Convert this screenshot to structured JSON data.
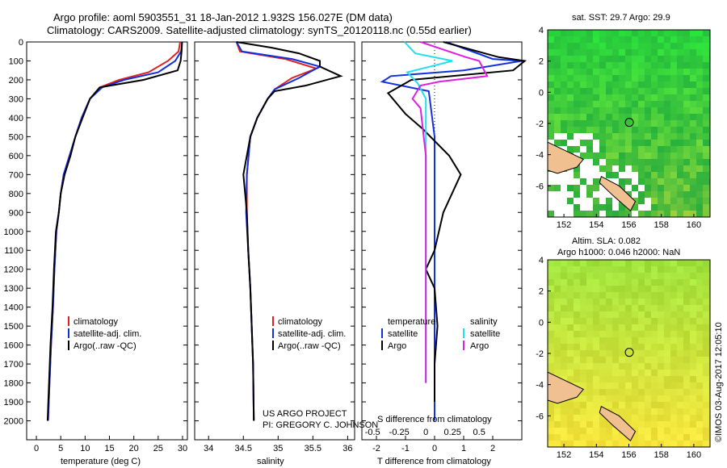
{
  "header": {
    "title_line1": "Argo profile: aoml 5903551_31 18-Jan-2012 1.932S 156.027E (DM data)",
    "title_line2": "Climatology: CARS2009. Satellite-adjusted climatology: synTS_20120118.nc (0.55d earlier)"
  },
  "colors": {
    "climatology": "#e02020",
    "satellite": "#1030e0",
    "argo": "#000000",
    "sat_salinity": "#20e0f0",
    "argo_salinity": "#e020e0",
    "land": "#f0c090"
  },
  "chart_data": [
    {
      "type": "line",
      "name": "temperature-panel",
      "xlabel": "temperature (deg C)",
      "ylabel": "",
      "xlim": [
        -2,
        31
      ],
      "ylim": [
        2100,
        0
      ],
      "xticks": [
        "0",
        "5",
        "10",
        "15",
        "20",
        "25",
        "30"
      ],
      "yticks": [
        "0",
        "100",
        "200",
        "300",
        "400",
        "500",
        "600",
        "700",
        "800",
        "900",
        "1000",
        "1100",
        "1200",
        "1300",
        "1400",
        "1500",
        "1600",
        "1700",
        "1800",
        "1900",
        "2000"
      ],
      "legend": [
        "climatology",
        "satellite-adj. clim.",
        "Argo(..raw -QC)"
      ],
      "series": [
        {
          "name": "climatology",
          "color": "#e02020",
          "points": [
            [
              29.5,
              0
            ],
            [
              29.2,
              50
            ],
            [
              27,
              100
            ],
            [
              23,
              160
            ],
            [
              17,
              200
            ],
            [
              13,
              240
            ],
            [
              11,
              300
            ],
            [
              9.3,
              400
            ],
            [
              8,
              500
            ],
            [
              6.8,
              600
            ],
            [
              5.6,
              700
            ],
            [
              5,
              800
            ],
            [
              4.6,
              900
            ],
            [
              4.1,
              1000
            ],
            [
              3.7,
              1200
            ],
            [
              3.4,
              1400
            ],
            [
              3,
              1600
            ],
            [
              2.7,
              1800
            ],
            [
              2.4,
              2000
            ]
          ]
        },
        {
          "name": "satellite-adj. clim.",
          "color": "#1030e0",
          "points": [
            [
              29.9,
              0
            ],
            [
              29.7,
              50
            ],
            [
              28.5,
              100
            ],
            [
              25,
              160
            ],
            [
              18,
              200
            ],
            [
              13.5,
              240
            ],
            [
              11,
              300
            ],
            [
              9.3,
              400
            ],
            [
              8,
              500
            ],
            [
              6.8,
              600
            ],
            [
              5.6,
              700
            ],
            [
              5,
              800
            ],
            [
              4.6,
              900
            ],
            [
              4.1,
              1000
            ],
            [
              3.7,
              1200
            ],
            [
              3.4,
              1400
            ],
            [
              3,
              1600
            ],
            [
              2.7,
              1800
            ],
            [
              2.4,
              2000
            ]
          ]
        },
        {
          "name": "Argo(..raw -QC)",
          "color": "#000000",
          "points": [
            [
              29.9,
              0
            ],
            [
              29.8,
              50
            ],
            [
              29.6,
              100
            ],
            [
              29,
              150
            ],
            [
              22,
              200
            ],
            [
              13,
              240
            ],
            [
              11,
              300
            ],
            [
              9.5,
              400
            ],
            [
              8,
              500
            ],
            [
              7,
              600
            ],
            [
              5.8,
              700
            ],
            [
              5,
              800
            ],
            [
              4.6,
              900
            ],
            [
              4,
              1000
            ],
            [
              3.6,
              1200
            ],
            [
              3.3,
              1400
            ],
            [
              2.9,
              1600
            ],
            [
              2.6,
              1800
            ],
            [
              2.3,
              2000
            ]
          ]
        }
      ]
    },
    {
      "type": "line",
      "name": "salinity-panel",
      "xlabel": "salinity",
      "xlim": [
        33.8,
        36.1
      ],
      "ylim": [
        2100,
        0
      ],
      "xticks": [
        "34",
        "34.5",
        "35",
        "35.5",
        "36"
      ],
      "legend": [
        "climatology",
        "satellite-adj. clim.",
        "Argo(..raw -QC)"
      ],
      "annotation": [
        "US ARGO PROJECT",
        "PI: GREGORY C. JOHNSON"
      ],
      "series": [
        {
          "name": "climatology",
          "color": "#e02020",
          "points": [
            [
              34.4,
              0
            ],
            [
              34.45,
              50
            ],
            [
              35.1,
              90
            ],
            [
              35.55,
              140
            ],
            [
              35.2,
              190
            ],
            [
              34.95,
              250
            ],
            [
              34.85,
              300
            ],
            [
              34.7,
              400
            ],
            [
              34.6,
              500
            ],
            [
              34.55,
              700
            ],
            [
              34.55,
              900
            ],
            [
              34.57,
              1100
            ],
            [
              34.6,
              1300
            ],
            [
              34.62,
              1500
            ],
            [
              34.64,
              1700
            ],
            [
              34.65,
              2000
            ]
          ]
        },
        {
          "name": "satellite-adj. clim.",
          "color": "#1030e0",
          "points": [
            [
              34.4,
              0
            ],
            [
              34.48,
              50
            ],
            [
              35.2,
              90
            ],
            [
              35.6,
              130
            ],
            [
              35.3,
              190
            ],
            [
              34.95,
              250
            ],
            [
              34.85,
              300
            ],
            [
              34.7,
              400
            ],
            [
              34.6,
              500
            ],
            [
              34.55,
              700
            ],
            [
              34.54,
              900
            ],
            [
              34.57,
              1100
            ],
            [
              34.6,
              1300
            ],
            [
              34.62,
              1500
            ],
            [
              34.64,
              1700
            ],
            [
              34.65,
              2000
            ]
          ]
        },
        {
          "name": "Argo(..raw -QC)",
          "color": "#000000",
          "points": [
            [
              34.4,
              0
            ],
            [
              34.9,
              30
            ],
            [
              35.3,
              60
            ],
            [
              35.6,
              100
            ],
            [
              35.6,
              130
            ],
            [
              35.9,
              180
            ],
            [
              35.4,
              230
            ],
            [
              34.95,
              260
            ],
            [
              34.85,
              300
            ],
            [
              34.7,
              400
            ],
            [
              34.6,
              500
            ],
            [
              34.5,
              700
            ],
            [
              34.55,
              900
            ],
            [
              34.57,
              1100
            ],
            [
              34.6,
              1300
            ],
            [
              34.62,
              1500
            ],
            [
              34.64,
              1700
            ],
            [
              34.65,
              2000
            ]
          ]
        }
      ]
    },
    {
      "type": "line",
      "name": "difference-panel",
      "xlabel": "T difference from climatology",
      "xlabel2": "S difference from climatology",
      "xlim": [
        -2.5,
        3.0
      ],
      "ylim": [
        2100,
        0
      ],
      "xticks": [
        "-2",
        "-1",
        "0",
        "1",
        "2"
      ],
      "xticks2": [
        "-0.5",
        "-0.25",
        "0",
        "0.25",
        "0.5"
      ],
      "legend_temperature": {
        "title": "temperature",
        "items": [
          "satellite",
          "Argo"
        ]
      },
      "legend_salinity": {
        "title": "salinity",
        "items": [
          "satellite",
          "Argo"
        ]
      },
      "series": [
        {
          "name": "temperature satellite",
          "color": "#1030e0",
          "points": [
            [
              0.4,
              0
            ],
            [
              2,
              90
            ],
            [
              3,
              100
            ],
            [
              1,
              150
            ],
            [
              -1.5,
              180
            ],
            [
              -1.8,
              210
            ],
            [
              -0.2,
              260
            ],
            [
              0,
              500
            ],
            [
              0,
              1000
            ],
            [
              0,
              2000
            ]
          ]
        },
        {
          "name": "temperature Argo",
          "color": "#000000",
          "points": [
            [
              0.3,
              0
            ],
            [
              2.2,
              80
            ],
            [
              3.1,
              100
            ],
            [
              2.7,
              150
            ],
            [
              -0.8,
              200
            ],
            [
              -1.6,
              270
            ],
            [
              -1,
              380
            ],
            [
              -0.4,
              460
            ],
            [
              0.5,
              600
            ],
            [
              0.9,
              700
            ],
            [
              0.3,
              900
            ],
            [
              0,
              1100
            ],
            [
              -0.3,
              1200
            ],
            [
              0,
              1300
            ],
            [
              0.1,
              1500
            ],
            [
              0,
              1700
            ],
            [
              0,
              1900
            ]
          ]
        },
        {
          "name": "salinity satellite",
          "color": "#20e0f0",
          "points": [
            [
              -0.8,
              0
            ],
            [
              -0.4,
              60
            ],
            [
              1,
              100
            ],
            [
              -0.7,
              160
            ],
            [
              -0.3,
              220
            ],
            [
              0,
              300
            ],
            [
              0,
              900
            ],
            [
              0,
              1800
            ]
          ]
        },
        {
          "name": "salinity Argo",
          "color": "#e020e0",
          "points": [
            [
              -0.2,
              0
            ],
            [
              1.5,
              80
            ],
            [
              2,
              100
            ],
            [
              2.3,
              180
            ],
            [
              0.5,
              210
            ],
            [
              -0.2,
              230
            ],
            [
              -0.5,
              300
            ],
            [
              -0.2,
              350
            ],
            [
              0,
              600
            ],
            [
              0,
              1000
            ],
            [
              0,
              1800
            ]
          ]
        }
      ]
    },
    {
      "type": "heatmap",
      "name": "sst-map",
      "title": "sat. SST: 29.7   Argo: 29.9",
      "xticks": [
        "152",
        "154",
        "156",
        "158",
        "160"
      ],
      "yticks": [
        "4",
        "2",
        "0",
        "-2",
        "-4",
        "-6"
      ],
      "xlim": [
        151,
        161
      ],
      "ylim": [
        -8,
        4
      ],
      "float_position": [
        156.027,
        -1.932
      ]
    },
    {
      "type": "heatmap",
      "name": "sla-map",
      "title": "Altim. SLA: 0.082",
      "subtitle": "Argo h1000: 0.046  h2000: NaN",
      "xticks": [
        "152",
        "154",
        "156",
        "158",
        "160"
      ],
      "yticks": [
        "4",
        "2",
        "0",
        "-2",
        "-4",
        "-6"
      ],
      "xlim": [
        151,
        161
      ],
      "ylim": [
        -8,
        4
      ],
      "float_position": [
        156.027,
        -1.932
      ]
    }
  ],
  "footer": {
    "credit": "©IMOS 03-Aug-2017 12:05:10"
  }
}
